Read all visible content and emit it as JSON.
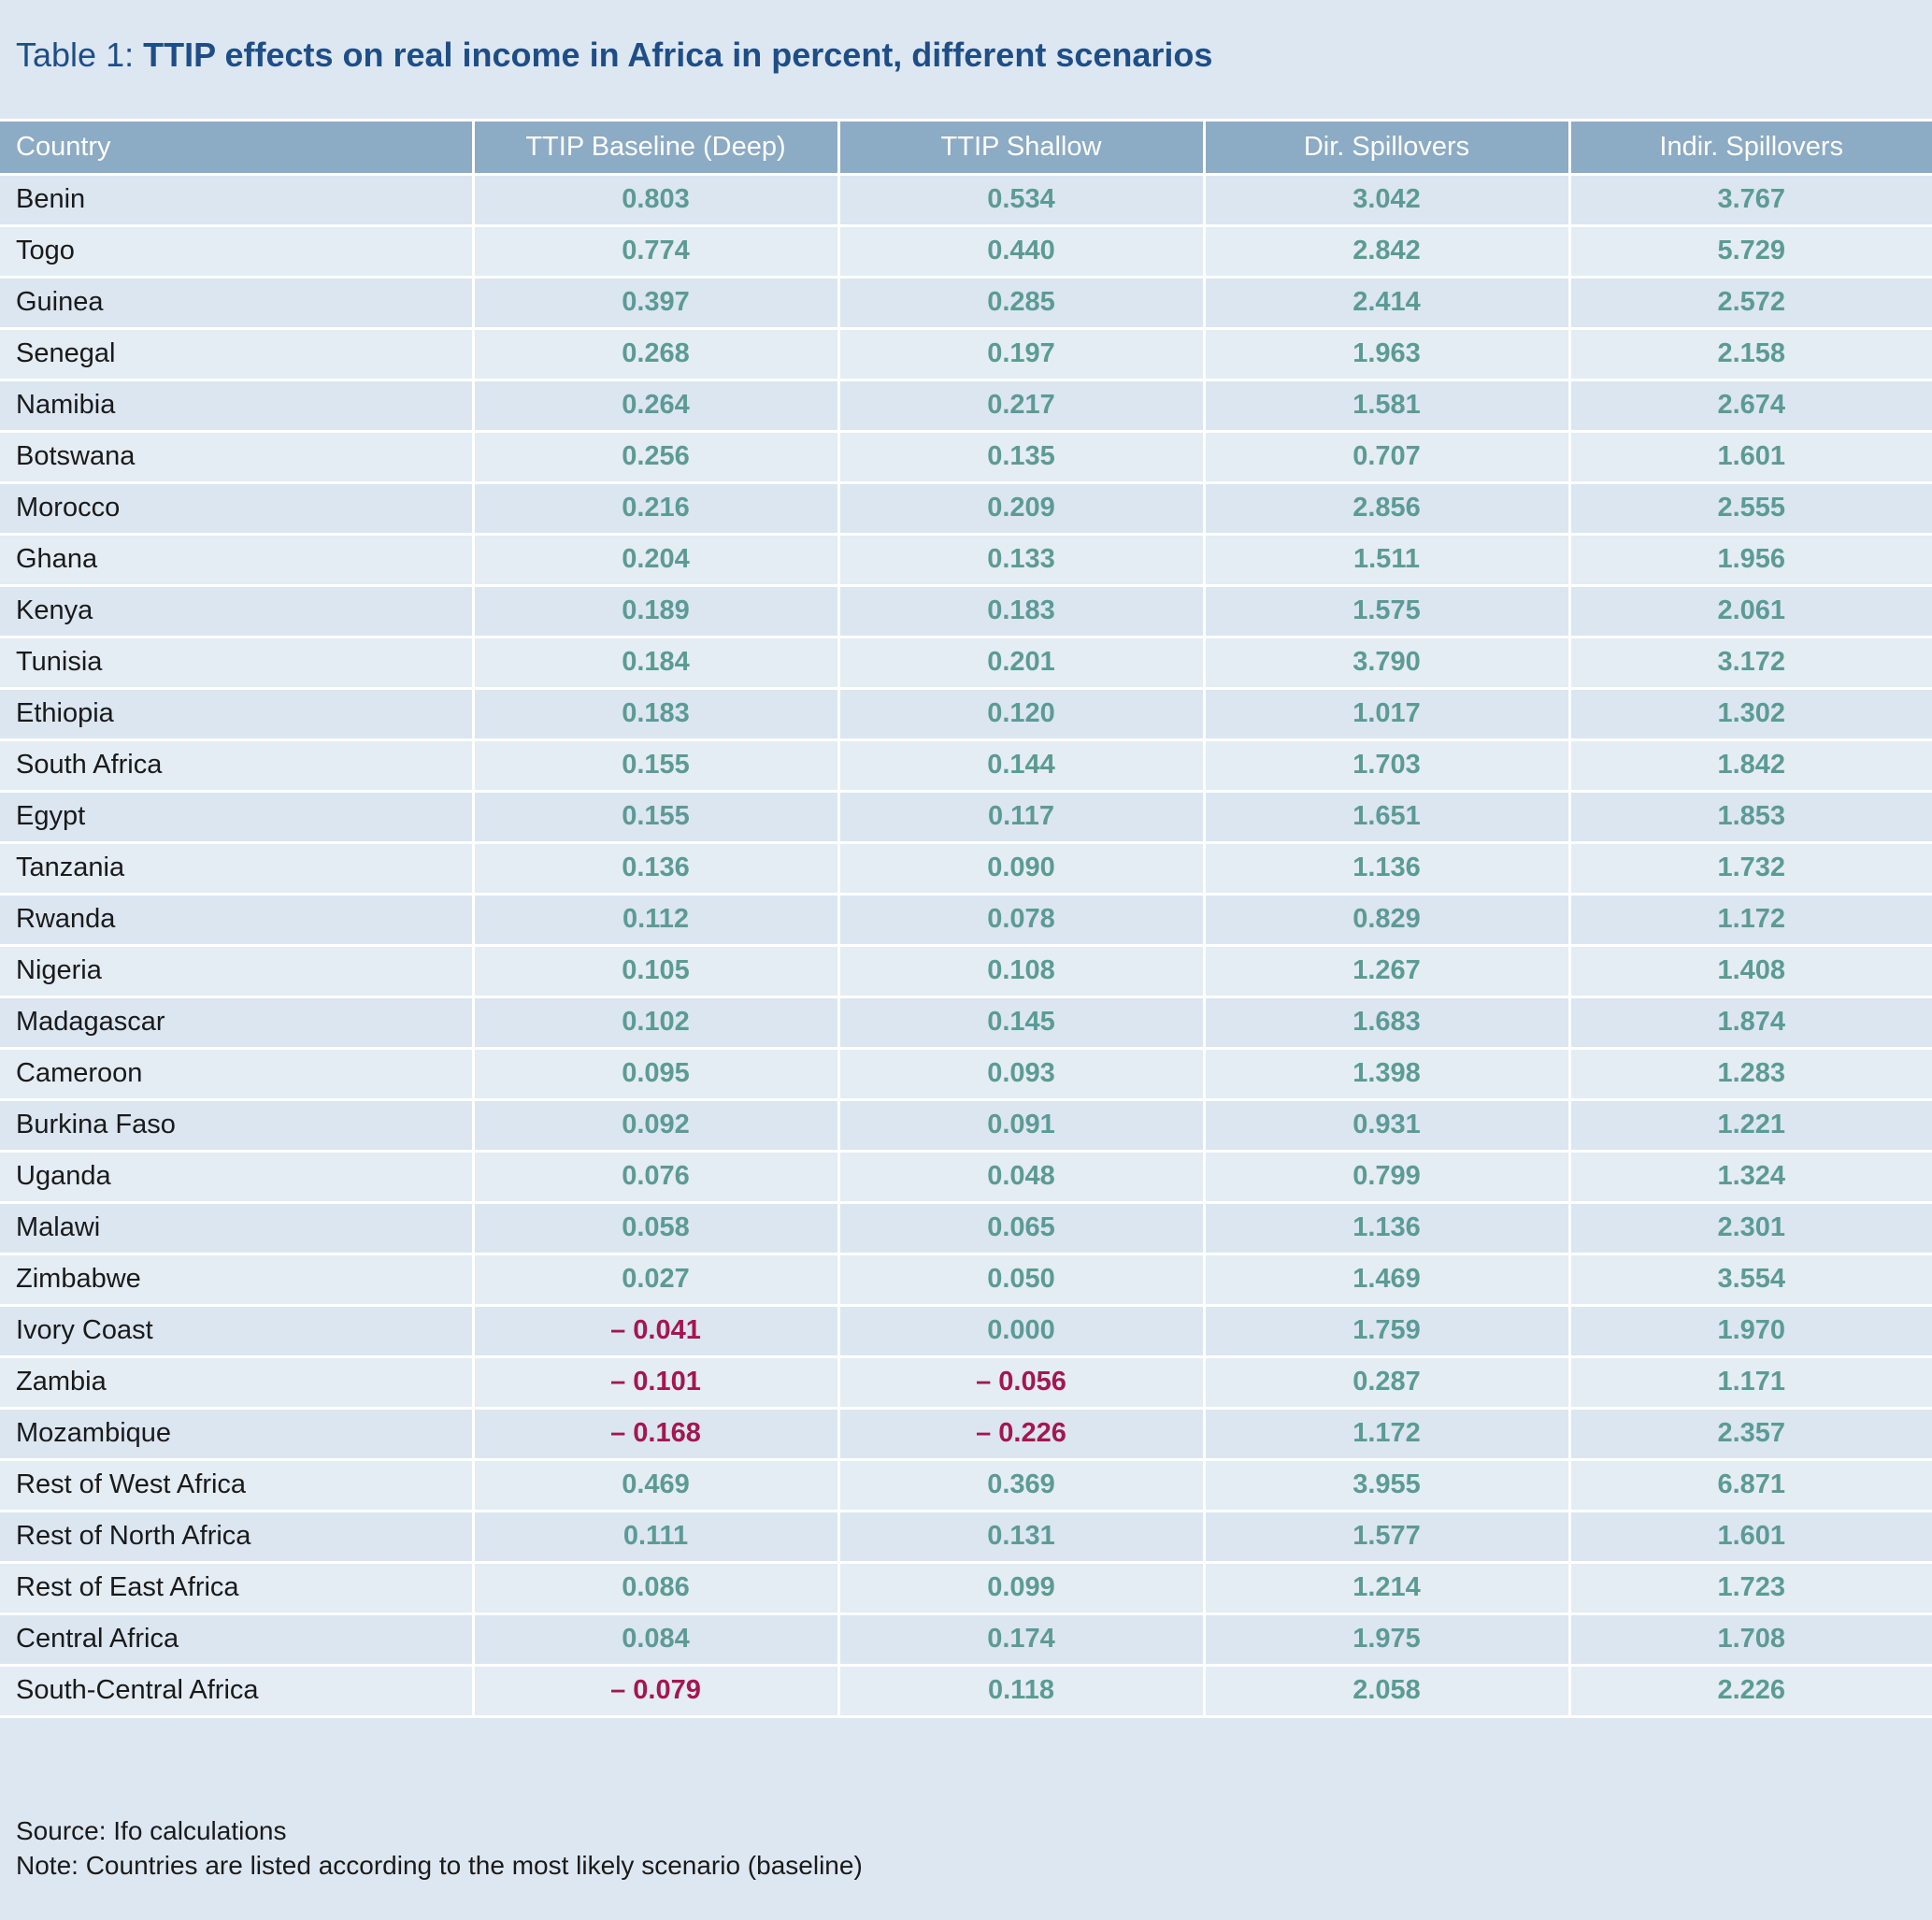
{
  "title": {
    "prefix": "Table 1: ",
    "main": "TTIP effects on real income in Africa in percent, different scenarios"
  },
  "colors": {
    "header_bg": "#8cabc4",
    "value_positive": "#5c9b94",
    "value_negative": "#a3174f",
    "title": "#1f4e86"
  },
  "columns": [
    "Country",
    "TTIP Baseline (Deep)",
    "TTIP Shallow",
    "Dir. Spillovers",
    "Indir. Spillovers"
  ],
  "rows": [
    [
      "Benin",
      "0.803",
      "0.534",
      "3.042",
      "3.767"
    ],
    [
      "Togo",
      "0.774",
      "0.440",
      "2.842",
      "5.729"
    ],
    [
      "Guinea",
      "0.397",
      "0.285",
      "2.414",
      "2.572"
    ],
    [
      "Senegal",
      "0.268",
      "0.197",
      "1.963",
      "2.158"
    ],
    [
      "Namibia",
      "0.264",
      "0.217",
      "1.581",
      "2.674"
    ],
    [
      "Botswana",
      "0.256",
      "0.135",
      "0.707",
      "1.601"
    ],
    [
      "Morocco",
      "0.216",
      "0.209",
      "2.856",
      "2.555"
    ],
    [
      "Ghana",
      "0.204",
      "0.133",
      "1.511",
      "1.956"
    ],
    [
      "Kenya",
      "0.189",
      "0.183",
      "1.575",
      "2.061"
    ],
    [
      "Tunisia",
      "0.184",
      "0.201",
      "3.790",
      "3.172"
    ],
    [
      "Ethiopia",
      "0.183",
      "0.120",
      "1.017",
      "1.302"
    ],
    [
      "South Africa",
      "0.155",
      "0.144",
      "1.703",
      "1.842"
    ],
    [
      "Egypt",
      "0.155",
      "0.117",
      "1.651",
      "1.853"
    ],
    [
      "Tanzania",
      "0.136",
      "0.090",
      "1.136",
      "1.732"
    ],
    [
      "Rwanda",
      "0.112",
      "0.078",
      "0.829",
      "1.172"
    ],
    [
      "Nigeria",
      "0.105",
      "0.108",
      "1.267",
      "1.408"
    ],
    [
      "Madagascar",
      "0.102",
      "0.145",
      "1.683",
      "1.874"
    ],
    [
      "Cameroon",
      "0.095",
      "0.093",
      "1.398",
      "1.283"
    ],
    [
      "Burkina Faso",
      "0.092",
      "0.091",
      "0.931",
      "1.221"
    ],
    [
      "Uganda",
      "0.076",
      "0.048",
      "0.799",
      "1.324"
    ],
    [
      "Malawi",
      "0.058",
      "0.065",
      "1.136",
      "2.301"
    ],
    [
      "Zimbabwe",
      "0.027",
      "0.050",
      "1.469",
      "3.554"
    ],
    [
      "Ivory Coast",
      "– 0.041",
      "0.000",
      "1.759",
      "1.970"
    ],
    [
      "Zambia",
      "– 0.101",
      "– 0.056",
      "0.287",
      "1.171"
    ],
    [
      "Mozambique",
      "– 0.168",
      "– 0.226",
      "1.172",
      "2.357"
    ],
    [
      "Rest of West Africa",
      "0.469",
      "0.369",
      "3.955",
      "6.871"
    ],
    [
      "Rest of North Africa",
      "0.111",
      "0.131",
      "1.577",
      "1.601"
    ],
    [
      "Rest of East Africa",
      "0.086",
      "0.099",
      "1.214",
      "1.723"
    ],
    [
      "Central Africa",
      "0.084",
      "0.174",
      "1.975",
      "1.708"
    ],
    [
      "South-Central Africa",
      "– 0.079",
      "0.118",
      "2.058",
      "2.226"
    ]
  ],
  "footer": {
    "source": "Source: Ifo calculations",
    "note": "Note: Countries are listed according to the most likely scenario (baseline)"
  }
}
